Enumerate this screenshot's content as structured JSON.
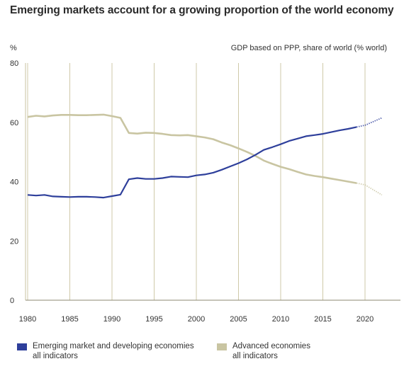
{
  "chart_data": {
    "type": "line",
    "title": "Emerging markets account for a growing proportion of the world economy",
    "subtitle": "GDP based on PPP, share of world (% world)",
    "ylabel": "%",
    "xlabel": "",
    "xlim": [
      1980,
      2022
    ],
    "ylim": [
      0,
      80
    ],
    "x_ticks": [
      1980,
      1985,
      1990,
      1995,
      2000,
      2005,
      2010,
      2015,
      2020
    ],
    "y_ticks": [
      0,
      20,
      40,
      60,
      80
    ],
    "grid": "vertical",
    "legend_position": "bottom",
    "series": [
      {
        "name": "Emerging market and developing economies all indicators",
        "legend_line1": "Emerging market and developing economies",
        "legend_line2": "all indicators",
        "color": "#2e3f9b",
        "x": [
          1980,
          1981,
          1982,
          1983,
          1984,
          1985,
          1986,
          1987,
          1988,
          1989,
          1990,
          1991,
          1992,
          1993,
          1994,
          1995,
          1996,
          1997,
          1998,
          1999,
          2000,
          2001,
          2002,
          2003,
          2004,
          2005,
          2006,
          2007,
          2008,
          2009,
          2010,
          2011,
          2012,
          2013,
          2014,
          2015,
          2016,
          2017,
          2018,
          2019
        ],
        "values": [
          35.5,
          35.3,
          35.5,
          35.0,
          34.9,
          34.8,
          34.9,
          34.9,
          34.8,
          34.6,
          35.1,
          35.6,
          40.8,
          41.2,
          40.9,
          40.9,
          41.2,
          41.7,
          41.6,
          41.5,
          42.1,
          42.4,
          43.0,
          44.0,
          45.1,
          46.2,
          47.5,
          49.0,
          50.7,
          51.6,
          52.6,
          53.7,
          54.5,
          55.3,
          55.7,
          56.1,
          56.7,
          57.3,
          57.8,
          58.4
        ],
        "projection_x": [
          2019,
          2020,
          2022
        ],
        "projection_values": [
          58.4,
          59.0,
          61.5
        ]
      },
      {
        "name": "Advanced economies all indicators",
        "legend_line1": "Advanced economies",
        "legend_line2": "all indicators",
        "color": "#c9c5a2",
        "x": [
          1980,
          1981,
          1982,
          1983,
          1984,
          1985,
          1986,
          1987,
          1988,
          1989,
          1990,
          1991,
          1992,
          1993,
          1994,
          1995,
          1996,
          1997,
          1998,
          1999,
          2000,
          2001,
          2002,
          2003,
          2004,
          2005,
          2006,
          2007,
          2008,
          2009,
          2010,
          2011,
          2012,
          2013,
          2014,
          2015,
          2016,
          2017,
          2018,
          2019
        ],
        "values": [
          61.8,
          62.2,
          62.0,
          62.3,
          62.5,
          62.5,
          62.4,
          62.4,
          62.5,
          62.6,
          62.1,
          61.5,
          56.4,
          56.2,
          56.5,
          56.4,
          56.1,
          55.7,
          55.6,
          55.7,
          55.3,
          54.9,
          54.3,
          53.2,
          52.3,
          51.2,
          50.0,
          48.7,
          47.1,
          46.0,
          45.0,
          44.2,
          43.3,
          42.4,
          41.9,
          41.5,
          41.0,
          40.5,
          40.0,
          39.5
        ],
        "projection_x": [
          2019,
          2020,
          2022
        ],
        "projection_values": [
          39.5,
          38.9,
          35.5
        ]
      }
    ]
  }
}
